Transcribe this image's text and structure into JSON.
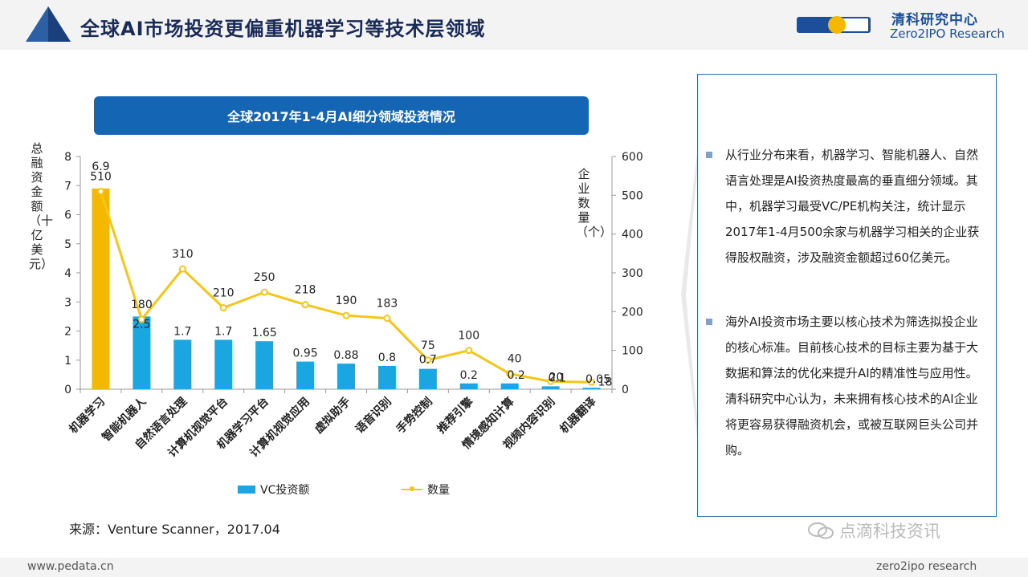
{
  "header": {
    "title": "全球AI市场投资更偏重机器学习等技术层领域",
    "brand_cn": "清科研究中心",
    "brand_en": "Zero2IPO Research",
    "logo_text": "Zero2IPO"
  },
  "chart_title": "全球2017年1-4月AI细分领域投资情况",
  "chart_data": {
    "type": "bar",
    "title": "全球2017年1-4月AI细分领域投资情况",
    "categories": [
      "机器学习",
      "智能机器人",
      "自然语言处理",
      "计算机视觉平台",
      "机器学习平台",
      "计算机视觉应用",
      "虚拟助手",
      "语音识别",
      "手势控制",
      "推荐引擎",
      "情境感知计算",
      "视频内容识别",
      "机器翻译"
    ],
    "ylabel": "总融资金额（十亿美元）",
    "y2label": "企业数量（个）",
    "ylim": [
      0,
      8
    ],
    "y2lim": [
      0,
      600
    ],
    "yticks": [
      "0",
      "1",
      "2",
      "3",
      "4",
      "5",
      "6",
      "7",
      "8"
    ],
    "y2ticks": [
      "0",
      "100",
      "200",
      "300",
      "400",
      "500",
      "600"
    ],
    "series": [
      {
        "name": "VC投资额",
        "type": "bar",
        "axis": "left",
        "values": [
          6.9,
          2.5,
          1.7,
          1.7,
          1.65,
          0.95,
          0.88,
          0.8,
          0.7,
          0.2,
          0.2,
          0.1,
          0.05
        ],
        "labels": [
          "6.9",
          "2.5",
          "1.7",
          "1.7",
          "1.65",
          "0.95",
          "0.88",
          "0.8",
          "0.7",
          "0.2",
          "0.2",
          "0.1",
          "0.05"
        ]
      },
      {
        "name": "数量",
        "type": "line",
        "axis": "right",
        "values": [
          510,
          180,
          310,
          210,
          250,
          218,
          190,
          183,
          75,
          100,
          40,
          20,
          18
        ],
        "labels": [
          "510",
          "180",
          "310",
          "210",
          "250",
          "218",
          "190",
          "183",
          "75",
          "100",
          "40",
          "20",
          "18"
        ]
      }
    ],
    "colors": {
      "bar": "#1aa7e1",
      "highlight_bar": "#f5b800",
      "line": "#f5c518",
      "axis": "#999999"
    }
  },
  "legend": {
    "vc": "VC投资额",
    "count": "数量"
  },
  "source": "来源：Venture Scanner，2017.04",
  "panel": {
    "para1": "从行业分布来看，机器学习、智能机器人、自然语言处理是AI投资热度最高的垂直细分领域。其中，机器学习最受VC/PE机构关注，统计显示2017年1-4月500余家与机器学习相关的企业获得股权融资，涉及融资金额超过60亿美元。",
    "para2": "海外AI投资市场主要以核心技术为筛选拟投企业的核心标准。目前核心技术的目标主要为基于大数据和算法的优化来提升AI的精准性与应用性。清科研究中心认为，未来拥有核心技术的AI企业将更容易获得融资机会，或被互联网巨头公司并购。"
  },
  "watermark": "点滴科技资讯",
  "footer": {
    "left": "www.pedata.cn",
    "right": "zero2ipo research"
  }
}
